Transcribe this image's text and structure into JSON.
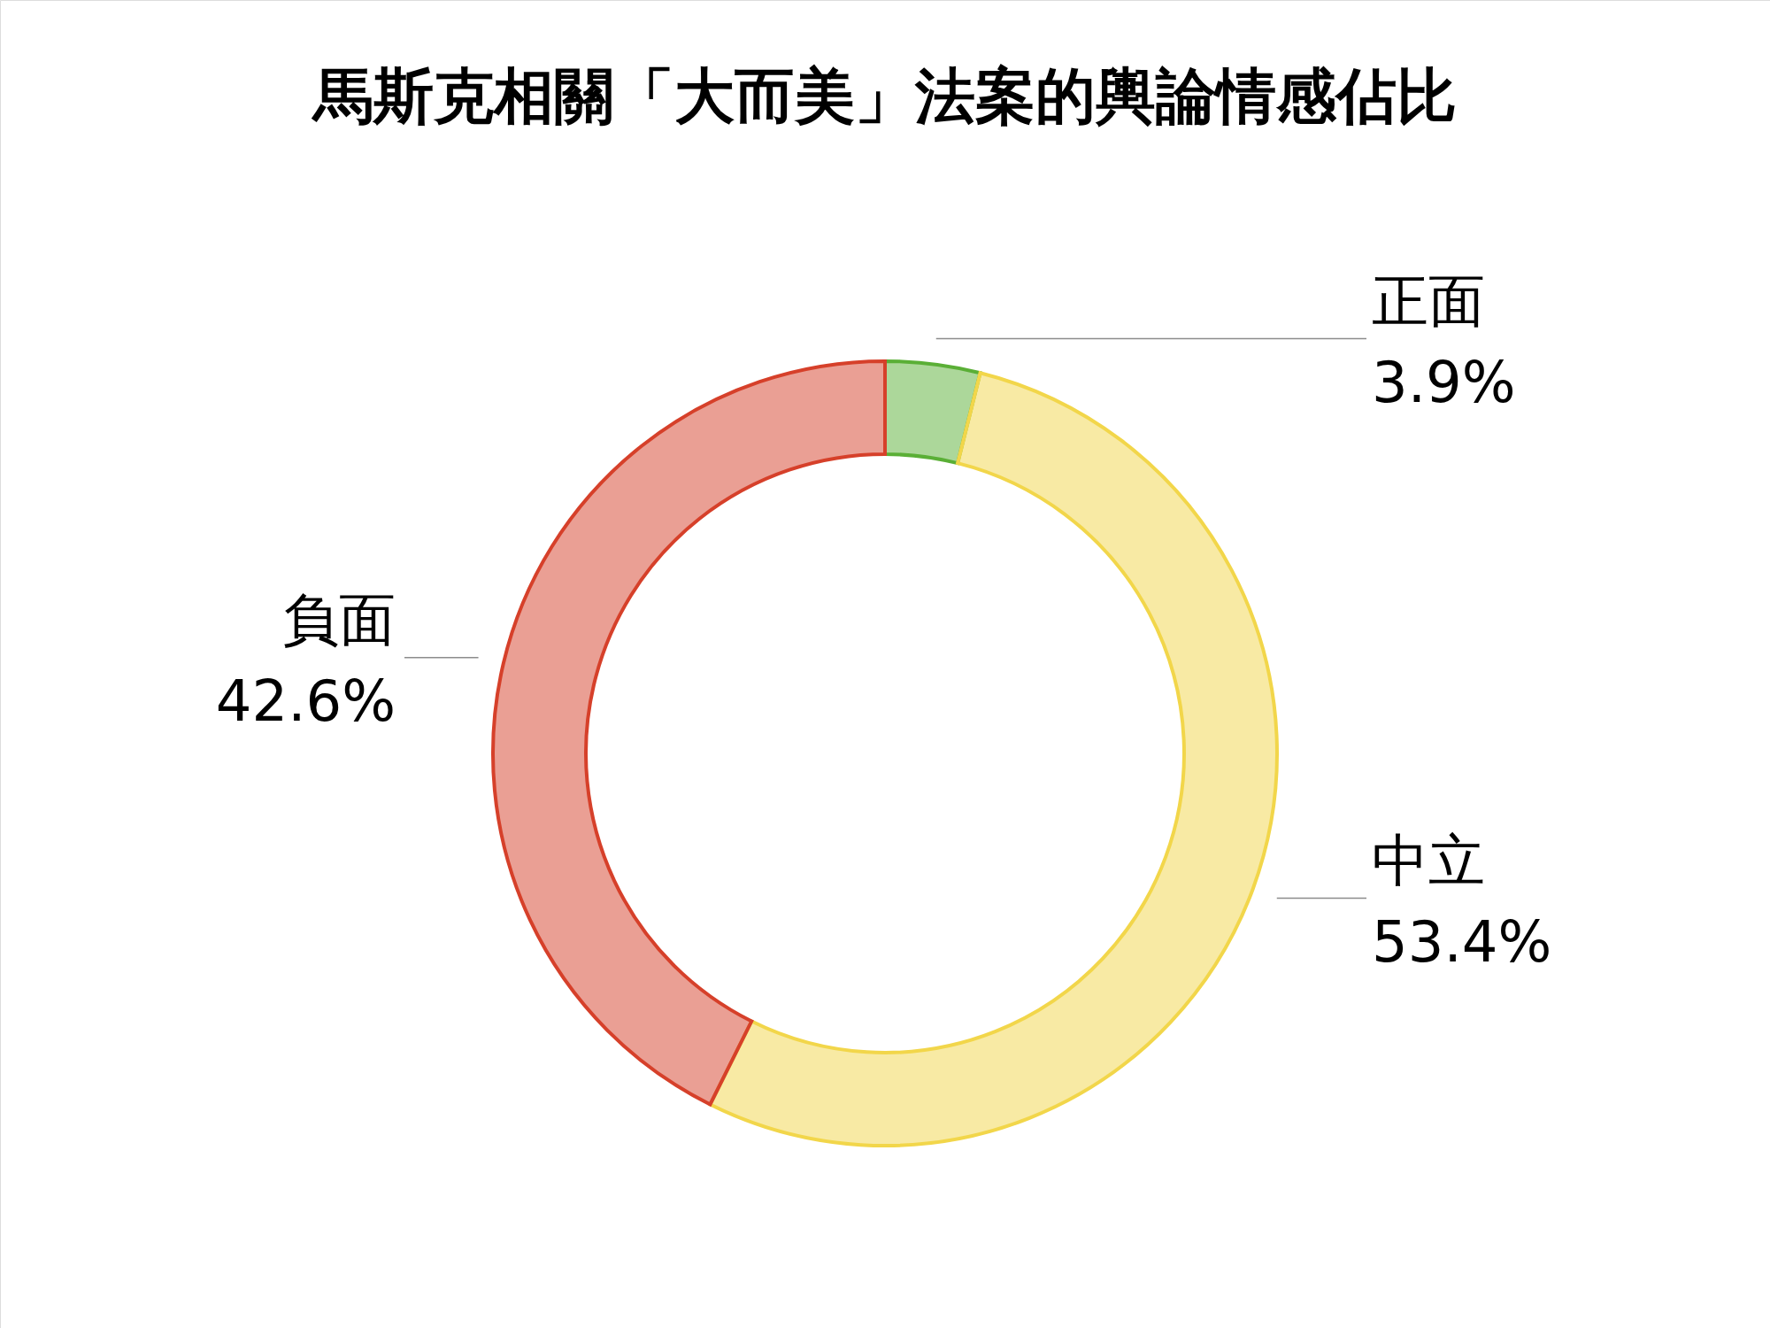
{
  "chart_data": {
    "type": "donut",
    "title": "馬斯克相關「大而美」法案的輿論情感佔比",
    "categories": [
      "正面",
      "中立",
      "負面"
    ],
    "values": [
      3.9,
      53.4,
      42.6
    ],
    "value_labels": [
      "3.9%",
      "53.4%",
      "42.6%"
    ],
    "colors": [
      "#5aaf36",
      "#f2d64a",
      "#d6402a"
    ]
  }
}
